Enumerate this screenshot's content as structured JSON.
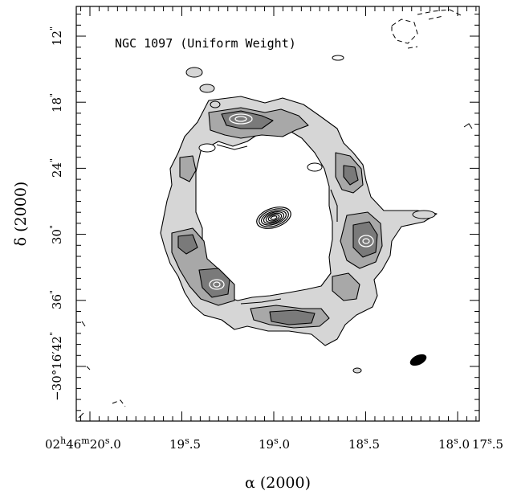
{
  "figure": {
    "title": "NGC 1097 (Uniform Weight)",
    "xlabel": "α (2000)",
    "ylabel": "δ (2000)",
    "x_ticks": [
      {
        "text": "02h46m20.0s",
        "parts": [
          "02",
          "h",
          "46",
          "m",
          "20",
          "s",
          ".0"
        ]
      },
      {
        "text": "19.5s",
        "parts": [
          "19",
          "s",
          ".5"
        ]
      },
      {
        "text": "19.0s",
        "parts": [
          "19",
          "s",
          ".0"
        ]
      },
      {
        "text": "18.5s",
        "parts": [
          "18",
          "s",
          ".5"
        ]
      },
      {
        "text": "18.0s",
        "parts": [
          "18",
          "s",
          ".0"
        ]
      },
      {
        "text": "17.5s",
        "parts": [
          "17",
          "s",
          ".5"
        ]
      }
    ],
    "y_ticks": [
      {
        "text": "12\"",
        "value": "12",
        "mark": "\""
      },
      {
        "text": "18\"",
        "value": "18",
        "mark": "\""
      },
      {
        "text": "24\"",
        "value": "24",
        "mark": "\""
      },
      {
        "text": "30\"",
        "value": "30",
        "mark": "\""
      },
      {
        "text": "36\"",
        "value": "36",
        "mark": "\""
      },
      {
        "text": "-30°16'42\"",
        "value": "−30°16′42",
        "mark": "\""
      }
    ],
    "colors": {
      "frame": "#000000",
      "fill_light": "#d2d2d2",
      "fill_mid": "#a9a9a9",
      "fill_dark": "#7c7c7c",
      "peak_contour": "#ffffff",
      "beam": "#000000"
    },
    "elements": [
      "ring-contours",
      "nucleus-contours",
      "beam-ellipse",
      "negative-contours"
    ]
  }
}
